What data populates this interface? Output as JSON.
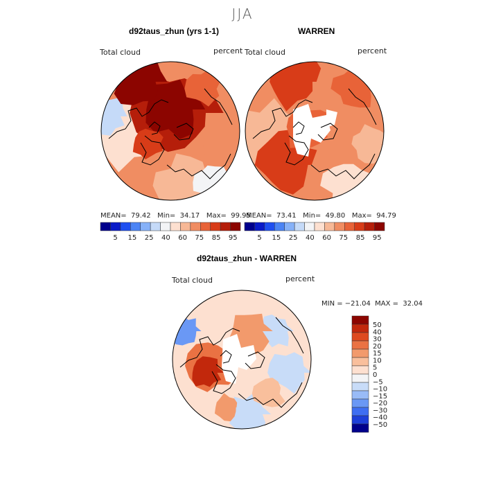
{
  "figure": {
    "season": "JJA",
    "colors": {
      "levels_abs": [
        "#00008c",
        "#0a1bc8",
        "#1f4ff0",
        "#4b84f5",
        "#86b1f8",
        "#c5daf8",
        "#f3f4f6",
        "#fde0d0",
        "#f7b896",
        "#f08d62",
        "#e86338",
        "#d83c18",
        "#b51e0a",
        "#8c0500"
      ],
      "levels_diff": [
        "#00008c",
        "#1d3fd9",
        "#3e6ef2",
        "#6a98f5",
        "#99bbf7",
        "#c8dcf8",
        "#f3f4f6",
        "#fde0d0",
        "#f9bf9c",
        "#f29a6c",
        "#ea7243",
        "#de4a1f",
        "#c2280c",
        "#8c0500"
      ]
    }
  },
  "panels": [
    {
      "id": "model",
      "title": "d92taus_zhun (yrs 1-1)",
      "variable_label": "Total cloud",
      "units_label": "percent",
      "stats": "MEAN=  79.42   Min=  34.17   Max=  99.95"
    },
    {
      "id": "obs",
      "title": "WARREN",
      "variable_label": "Total cloud",
      "units_label": "percent",
      "stats": "MEAN=  73.41   Min=  49.80   Max=  94.79"
    },
    {
      "id": "diff",
      "title": "d92taus_zhun - WARREN",
      "variable_label": "Total cloud",
      "units_label": "percent",
      "stats": "MIN = −21.04  MAX =  32.04"
    }
  ],
  "colorbar_abs": {
    "tick_labels": [
      "5",
      "15",
      "25",
      "40",
      "60",
      "75",
      "85",
      "95"
    ]
  },
  "colorbar_diff": {
    "tick_labels": [
      "50",
      "40",
      "30",
      "20",
      "15",
      "10",
      "5",
      "0",
      "−5",
      "−10",
      "−15",
      "−20",
      "−30",
      "−40",
      "−50"
    ]
  }
}
